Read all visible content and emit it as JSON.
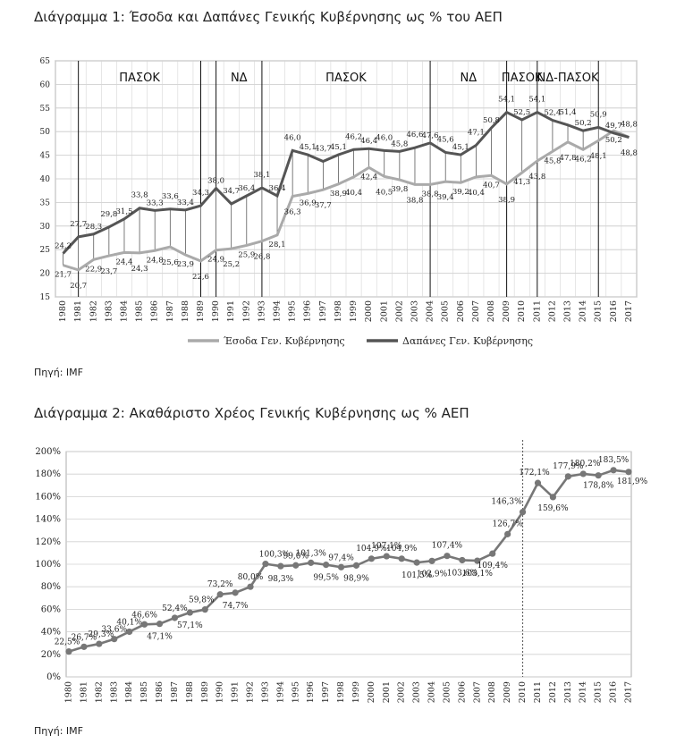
{
  "charts": [
    {
      "title": "Διάγραμμα 1: Έσοδα και Δαπάνες Γενικής Κυβέρνησης ως % του ΑΕΠ",
      "source": "Πηγή: IMF"
    },
    {
      "title": "Διάγραμμα 2: Ακαθάριστο Χρέος Γενικής Κυβέρνησης ως % ΑΕΠ",
      "source": "Πηγή: IMF"
    }
  ],
  "chart_data": [
    {
      "type": "line",
      "title": "Διάγραμμα 1: Έσοδα και Δαπάνες Γενικής Κυβέρνησης ως % του ΑΕΠ",
      "x": [
        "1980",
        "1981",
        "1982",
        "1983",
        "1984",
        "1985",
        "1986",
        "1987",
        "1988",
        "1989",
        "1990",
        "1991",
        "1992",
        "1993",
        "1994",
        "1995",
        "1996",
        "1997",
        "1998",
        "1999",
        "2000",
        "2001",
        "2002",
        "2003",
        "2004",
        "2005",
        "2006",
        "2007",
        "2008",
        "2009",
        "2010",
        "2011",
        "2012",
        "2013",
        "2014",
        "2015",
        "2016",
        "2017"
      ],
      "series": [
        {
          "name": "Έσοδα Γεν. Κυβέρνησης",
          "color": "#aaaaaa",
          "values": [
            21.7,
            20.7,
            22.9,
            23.7,
            24.4,
            24.3,
            24.8,
            25.6,
            23.9,
            22.6,
            24.9,
            25.2,
            25.9,
            26.8,
            28.1,
            36.3,
            36.9,
            37.7,
            38.9,
            40.4,
            42.4,
            40.5,
            39.8,
            38.8,
            38.8,
            39.4,
            39.2,
            40.4,
            40.7,
            38.9,
            41.3,
            43.8,
            45.8,
            47.8,
            46.2,
            48.1,
            50.2,
            48.8
          ]
        },
        {
          "name": "Δαπάνες Γεν. Κυβέρνησης",
          "color": "#555555",
          "values": [
            24.2,
            27.7,
            28.3,
            29.8,
            31.5,
            33.8,
            33.3,
            33.6,
            33.4,
            34.3,
            38.0,
            34.7,
            36.4,
            38.1,
            36.4,
            46.0,
            45.1,
            43.7,
            45.1,
            46.2,
            46.4,
            46.0,
            45.8,
            46.6,
            47.6,
            45.6,
            45.1,
            47.1,
            50.8,
            54.1,
            52.5,
            54.1,
            52.4,
            51.4,
            50.2,
            50.9,
            49.7,
            48.8
          ]
        }
      ],
      "value_labels": {
        "revenue": [
          "21,7",
          "20,7",
          "22,9",
          "23,7",
          "24,4",
          "24,3",
          "24,8",
          "25,6",
          "23,9",
          "22,6",
          "24,9",
          "25,2",
          "25,9",
          "26,8",
          "28,1",
          "36,3",
          "36,9",
          "37,7",
          "38,9",
          "40,4",
          "42,4",
          "40,5",
          "39,8",
          "38,8",
          "38,8",
          "39,4",
          "39,2",
          "40,4",
          "40,7",
          "38,9",
          "41,3",
          "43,8",
          "45,8",
          "47,8",
          "46,2",
          "48,1",
          "50,2",
          "48,8"
        ],
        "expenditure": [
          "24,2",
          "27,7",
          "28,3",
          "29,8",
          "31,5",
          "33,8",
          "33,3",
          "33,6",
          "33,4",
          "34,3",
          "38,0",
          "34,7",
          "36,4",
          "38,1",
          "36,4",
          "46,0",
          "45,1",
          "43,7",
          "45,1",
          "46,2",
          "46,4",
          "46,0",
          "45,8",
          "46,6",
          "47,6",
          "45,6",
          "45,1",
          "47,1",
          "50,8",
          "54,1",
          "52,5",
          "54,1",
          "52,4",
          "51,4",
          "50,2",
          "50,9",
          "49,7",
          "48,8"
        ]
      },
      "y_ticks": [
        "15",
        "20",
        "25",
        "30",
        "35",
        "40",
        "45",
        "50",
        "55",
        "60",
        "65"
      ],
      "ylim": [
        15,
        65
      ],
      "grid": true,
      "legend_placement": "bottom",
      "periods": [
        {
          "label": "ΠΑΣΟΚ",
          "start": "1981",
          "end": "1989"
        },
        {
          "label": "ΝΔ",
          "start": "1990",
          "end": "1993"
        },
        {
          "label": "ΠΑΣΟΚ",
          "start": "1993",
          "end": "2004"
        },
        {
          "label": "ΝΔ",
          "start": "2004",
          "end": "2009"
        },
        {
          "label": "ΠΑΣΟΚ",
          "start": "2009",
          "end": "2011"
        },
        {
          "label": "ΝΔ-ΠΑΣΟΚ",
          "start": "2011",
          "end": "2015"
        }
      ],
      "period_boundaries": [
        "1981",
        "1989",
        "1990",
        "1993",
        "2004",
        "2009",
        "2011",
        "2015"
      ]
    },
    {
      "type": "line",
      "title": "Διάγραμμα 2: Ακαθάριστο Χρέος Γενικής Κυβέρνησης ως % ΑΕΠ",
      "x": [
        "1980",
        "1981",
        "1982",
        "1983",
        "1984",
        "1985",
        "1986",
        "1987",
        "1988",
        "1989",
        "1990",
        "1991",
        "1992",
        "1993",
        "1994",
        "1995",
        "1996",
        "1997",
        "1998",
        "1999",
        "2000",
        "2001",
        "2002",
        "2003",
        "2004",
        "2005",
        "2006",
        "2007",
        "2008",
        "2009",
        "2010",
        "2011",
        "2012",
        "2013",
        "2014",
        "2015",
        "2016",
        "2017"
      ],
      "series": [
        {
          "name": "",
          "color": "#777777",
          "values": [
            22.5,
            26.7,
            29.3,
            33.6,
            40.1,
            46.6,
            47.1,
            52.4,
            57.1,
            59.8,
            73.2,
            74.7,
            80.0,
            100.3,
            98.3,
            99.0,
            101.3,
            99.5,
            97.4,
            98.9,
            104.9,
            107.1,
            104.9,
            101.5,
            102.9,
            107.4,
            103.6,
            103.1,
            109.4,
            126.7,
            146.3,
            172.1,
            159.6,
            177.9,
            180.2,
            178.8,
            183.5,
            181.9
          ]
        }
      ],
      "value_labels": {
        "1980": "22,5%",
        "1981": "26,7%",
        "1982": "29,3%",
        "1983": "33,6%",
        "1984": "40,1%",
        "1985": "46,6%",
        "1987": "52,4%",
        "1986": "47,1%",
        "1989": "59,8%",
        "1990": "73,2%",
        "1988": "57,1%",
        "1992": "80,0%",
        "1991": "74,7%",
        "1993": "100,3%",
        "1994": "98,3%",
        "1995": "99,0%",
        "1996": "101,3%",
        "1997": "99,5%",
        "1998": "97,4%",
        "1999": "98,9%",
        "2000": "104,9%",
        "2001": "107,1%",
        "2003": "101,5%",
        "2002": "104,9%",
        "2004": "102,9%",
        "2005": "107,4%",
        "2006": "103,6%",
        "2007": "103,1%",
        "2008": "109,4%",
        "2009": "126,7%",
        "2010": "146,3%",
        "2011": "172,1%",
        "2012": "159,6%",
        "2013": "177,9%",
        "2014": "180,2%",
        "2015": "178,8%",
        "2016": "183,5%",
        "2017": "181,9%"
      },
      "y_ticks": [
        "0%",
        "20%",
        "40%",
        "60%",
        "80%",
        "100%",
        "120%",
        "140%",
        "160%",
        "180%",
        "200%"
      ],
      "ylim": [
        0,
        200
      ],
      "grid": true,
      "marker_line_year": "2010"
    }
  ]
}
